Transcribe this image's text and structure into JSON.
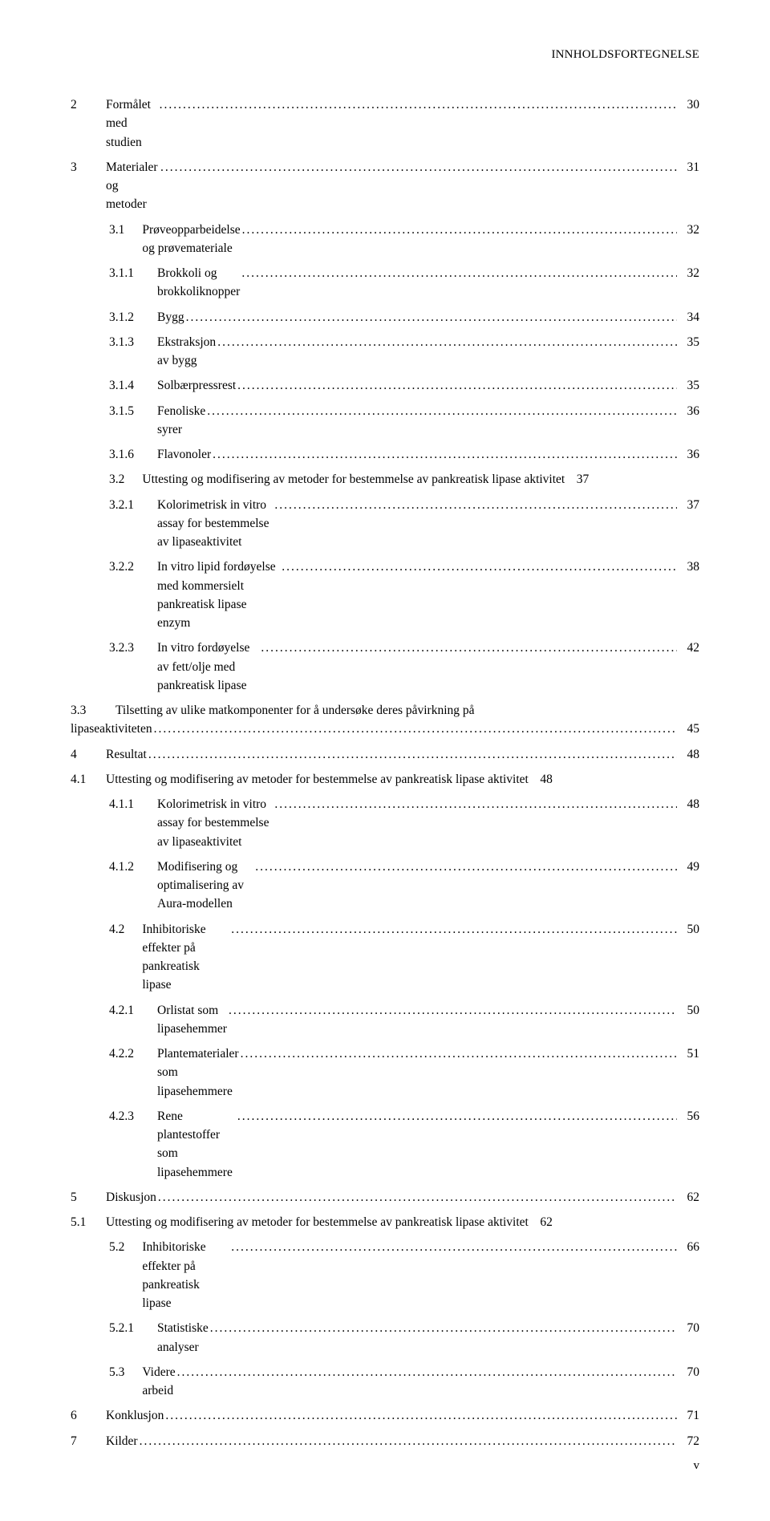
{
  "running_header": "INNHOLDSFORTEGNELSE",
  "page_footer": "v",
  "toc": [
    {
      "num": "2",
      "title": "Formålet med studien",
      "page": "30",
      "level": 0
    },
    {
      "num": "3",
      "title": "Materialer og metoder",
      "page": "31",
      "level": 0
    },
    {
      "num": "3.1",
      "title": "Prøveopparbeidelse og prøvemateriale",
      "page": "32",
      "level": 1,
      "sub": true
    },
    {
      "num": "3.1.1",
      "title": "Brokkoli og brokkoliknopper",
      "page": "32",
      "level": 2
    },
    {
      "num": "3.1.2",
      "title": "Bygg",
      "page": "34",
      "level": 2
    },
    {
      "num": "3.1.3",
      "title": "Ekstraksjon av bygg",
      "page": "35",
      "level": 2
    },
    {
      "num": "3.1.4",
      "title": "Solbærpressrest",
      "page": "35",
      "level": 2
    },
    {
      "num": "3.1.5",
      "title": "Fenoliske syrer",
      "page": "36",
      "level": 2
    },
    {
      "num": "3.1.6",
      "title": "Flavonoler",
      "page": "36",
      "level": 2
    },
    {
      "num": "3.2",
      "title": "Uttesting og modifisering av metoder for bestemmelse av pankreatisk lipase aktivitet",
      "page": "37",
      "level": 1,
      "sub": true
    },
    {
      "num": "3.2.1",
      "title": "Kolorimetrisk in vitro assay for bestemmelse av lipaseaktivitet",
      "page": "37",
      "level": 2
    },
    {
      "num": "3.2.2",
      "title": "In vitro lipid fordøyelse med kommersielt pankreatisk lipase enzym",
      "page": "38",
      "level": 2
    },
    {
      "num": "3.2.3",
      "title": "In vitro fordøyelse av fett/olje med pankreatisk lipase",
      "page": "42",
      "level": 2
    },
    {
      "num": "3.3",
      "title_line1": "Tilsetting av ulike matkomponenter for å undersøke deres påvirkning på",
      "title_line2": "lipaseaktiviteten",
      "page": "45",
      "level": 1,
      "sub": true,
      "multiline": true
    },
    {
      "num": "4",
      "title": "Resultat",
      "page": "48",
      "level": 0
    },
    {
      "num": "4.1",
      "title": "Uttesting og modifisering av metoder for bestemmelse av pankreatisk lipase aktivitet",
      "page": "48",
      "level": 1
    },
    {
      "num": "4.1.1",
      "title": "Kolorimetrisk in vitro assay for bestemmelse av lipaseaktivitet",
      "page": "48",
      "level": 2
    },
    {
      "num": "4.1.2",
      "title": "Modifisering og optimalisering av Aura-modellen",
      "page": "49",
      "level": 2
    },
    {
      "num": "4.2",
      "title": "Inhibitoriske effekter på pankreatisk lipase",
      "page": "50",
      "level": 1,
      "sub": true
    },
    {
      "num": "4.2.1",
      "title": "Orlistat som lipasehemmer",
      "page": "50",
      "level": 2
    },
    {
      "num": "4.2.2",
      "title": "Plantematerialer som lipasehemmere",
      "page": "51",
      "level": 2
    },
    {
      "num": "4.2.3",
      "title": "Rene plantestoffer som lipasehemmere",
      "page": "56",
      "level": 2
    },
    {
      "num": "5",
      "title": "Diskusjon",
      "page": "62",
      "level": 0
    },
    {
      "num": "5.1",
      "title": "Uttesting og modifisering av metoder for bestemmelse av pankreatisk lipase aktivitet",
      "page": "62",
      "level": 1,
      "tight": true
    },
    {
      "num": "5.2",
      "title": "Inhibitoriske effekter på pankreatisk lipase",
      "page": "66",
      "level": 1,
      "sub": true
    },
    {
      "num": "5.2.1",
      "title": "Statistiske analyser",
      "page": "70",
      "level": 2
    },
    {
      "num": "5.3",
      "title": "Videre arbeid",
      "page": "70",
      "level": 1,
      "sub": true
    },
    {
      "num": "6",
      "title": "Konklusjon",
      "page": "71",
      "level": 0
    },
    {
      "num": "7",
      "title": "Kilder",
      "page": "72",
      "level": 0
    }
  ]
}
